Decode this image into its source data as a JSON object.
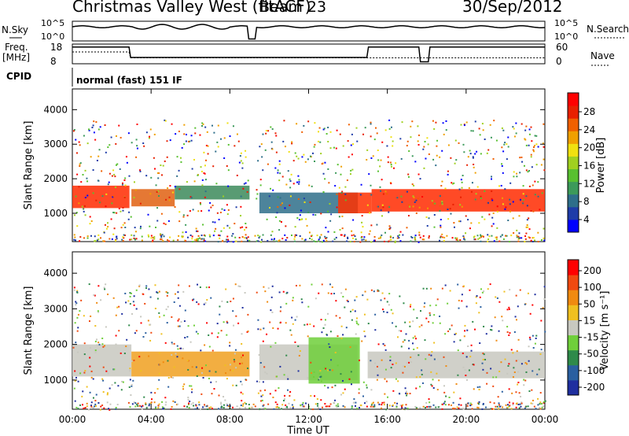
{
  "header": {
    "title": "Christmas Valley West (fitACF)",
    "beam": "Beam 23",
    "date": "30/Sep/2012"
  },
  "aux_panels": {
    "nsky_label": "N.Sky",
    "nsky_ticks": [
      "10^5",
      "10^0"
    ],
    "nsearch_label": "N.Search",
    "nsearch_ticks": [
      "10^5",
      "10^0"
    ],
    "freq_label": "Freq.",
    "freq_unit": "[MHz]",
    "freq_ticks": [
      "18",
      "8"
    ],
    "nave_label": "Nave",
    "nave_ticks": [
      "60",
      "0"
    ],
    "cpid_label": "CPID",
    "cpid_value": "normal (fast) 151 IF"
  },
  "chart_data": [
    {
      "type": "heatmap",
      "name": "power",
      "ylabel": "Slant Range [km]",
      "yticks": [
        "4000",
        "3000",
        "2000",
        "1000"
      ],
      "ylim": [
        180,
        4600
      ],
      "xlim": [
        0,
        24
      ],
      "colorbar": {
        "label": "Power [dB]",
        "ticks": [
          "28",
          "24",
          "20",
          "16",
          "12",
          "8",
          "4"
        ],
        "colors": [
          "#0000ff",
          "#1e3ca8",
          "#2e6e8a",
          "#3c9a5a",
          "#58c030",
          "#a0d020",
          "#f0e010",
          "#f0a000",
          "#f06000",
          "#e82000",
          "#ff0000"
        ]
      },
      "bands": [
        {
          "t0": 0.0,
          "t1": 2.9,
          "r0": 1150,
          "r1": 1800,
          "color": "#ff2a00"
        },
        {
          "t0": 3.0,
          "t1": 5.2,
          "r0": 1200,
          "r1": 1700,
          "color": "#e06010"
        },
        {
          "t0": 5.2,
          "t1": 9.0,
          "r0": 1400,
          "r1": 1800,
          "color": "#3c8a5a"
        },
        {
          "t0": 9.5,
          "t1": 14.5,
          "r0": 1000,
          "r1": 1600,
          "color": "#2e6e8a"
        },
        {
          "t0": 13.5,
          "t1": 15.2,
          "r0": 1000,
          "r1": 1600,
          "color": "#ff3000"
        },
        {
          "t0": 15.2,
          "t1": 24.0,
          "r0": 1050,
          "r1": 1700,
          "color": "#ff2a00"
        }
      ]
    },
    {
      "type": "heatmap",
      "name": "velocity",
      "ylabel": "Slant Range [km]",
      "yticks": [
        "4000",
        "3000",
        "2000",
        "1000"
      ],
      "ylim": [
        180,
        4600
      ],
      "xlim": [
        0,
        24
      ],
      "xticks": [
        "00:00",
        "04:00",
        "08:00",
        "12:00",
        "16:00",
        "20:00",
        "00:00"
      ],
      "xlabel": "Time UT",
      "colorbar": {
        "label": "Velocity [m s⁻¹]",
        "ticks": [
          "200",
          "100",
          "50",
          "15",
          "-15",
          "-50",
          "-100",
          "-200"
        ],
        "colors": [
          "#1f2f9f",
          "#2a5fa0",
          "#2f8a4a",
          "#6fcf3a",
          "#c8c8c0",
          "#f0c020",
          "#f08a10",
          "#f04a10",
          "#ff0000"
        ]
      },
      "bands": [
        {
          "t0": 0.0,
          "t1": 3.0,
          "r0": 1100,
          "r1": 2000,
          "color": "#c8c8c0"
        },
        {
          "t0": 3.0,
          "t1": 9.0,
          "r0": 1100,
          "r1": 1800,
          "color": "#f0a020"
        },
        {
          "t0": 9.5,
          "t1": 14.5,
          "r0": 1000,
          "r1": 2000,
          "color": "#c8c8c0"
        },
        {
          "t0": 12.0,
          "t1": 14.6,
          "r0": 900,
          "r1": 2200,
          "color": "#6fcf3a"
        },
        {
          "t0": 15.0,
          "t1": 24.0,
          "r0": 1050,
          "r1": 1800,
          "color": "#c8c8c0"
        }
      ]
    }
  ]
}
